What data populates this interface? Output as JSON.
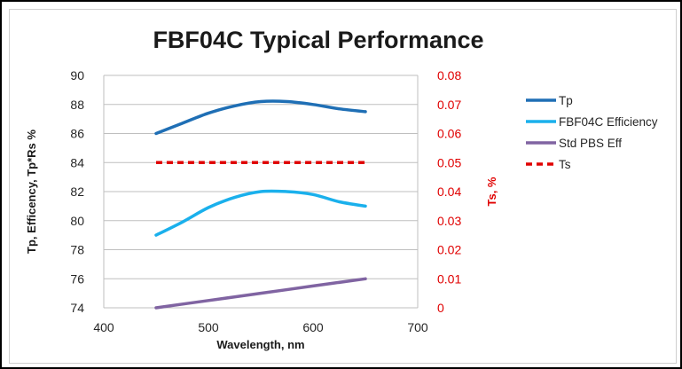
{
  "chart_data": {
    "type": "line",
    "title": "FBF04C Typical Performance",
    "xlabel": "Wavelength, nm",
    "ylabel": "Tp, Efficency, Tp*Rs %",
    "ylabel_right": "Ts, %",
    "xlim": [
      400,
      700
    ],
    "ylim": [
      74,
      90
    ],
    "ylim_right": [
      0,
      0.08
    ],
    "x_ticks": [
      "400",
      "500",
      "600",
      "700"
    ],
    "y_ticks": [
      "74",
      "76",
      "78",
      "80",
      "82",
      "84",
      "86",
      "88",
      "90"
    ],
    "y_ticks_right": [
      "0",
      "0.01",
      "0.02",
      "0.03",
      "0.04",
      "0.05",
      "0.06",
      "0.07",
      "0.08"
    ],
    "grid": true,
    "legend_position": "right",
    "series": [
      {
        "name": "Tp",
        "axis": "left",
        "color": "#1f6fb5",
        "dash": false,
        "x": [
          450,
          475,
          500,
          525,
          550,
          575,
          600,
          625,
          650
        ],
        "y": [
          86.0,
          86.7,
          87.4,
          87.9,
          88.2,
          88.2,
          88.0,
          87.7,
          87.5
        ]
      },
      {
        "name": "FBF04C Efficiency",
        "axis": "left",
        "color": "#1ab0ec",
        "dash": false,
        "x": [
          450,
          475,
          500,
          525,
          550,
          575,
          600,
          625,
          650
        ],
        "y": [
          79.0,
          79.9,
          80.9,
          81.6,
          82.0,
          82.0,
          81.8,
          81.3,
          81.0
        ]
      },
      {
        "name": "Std PBS Eff",
        "axis": "left",
        "color": "#8064a2",
        "dash": false,
        "x": [
          450,
          500,
          550,
          600,
          650
        ],
        "y": [
          74.0,
          74.5,
          75.0,
          75.5,
          76.0
        ]
      },
      {
        "name": "Ts",
        "axis": "right",
        "color": "#e00000",
        "dash": true,
        "x": [
          450,
          650
        ],
        "y": [
          0.05,
          0.05
        ]
      }
    ]
  }
}
